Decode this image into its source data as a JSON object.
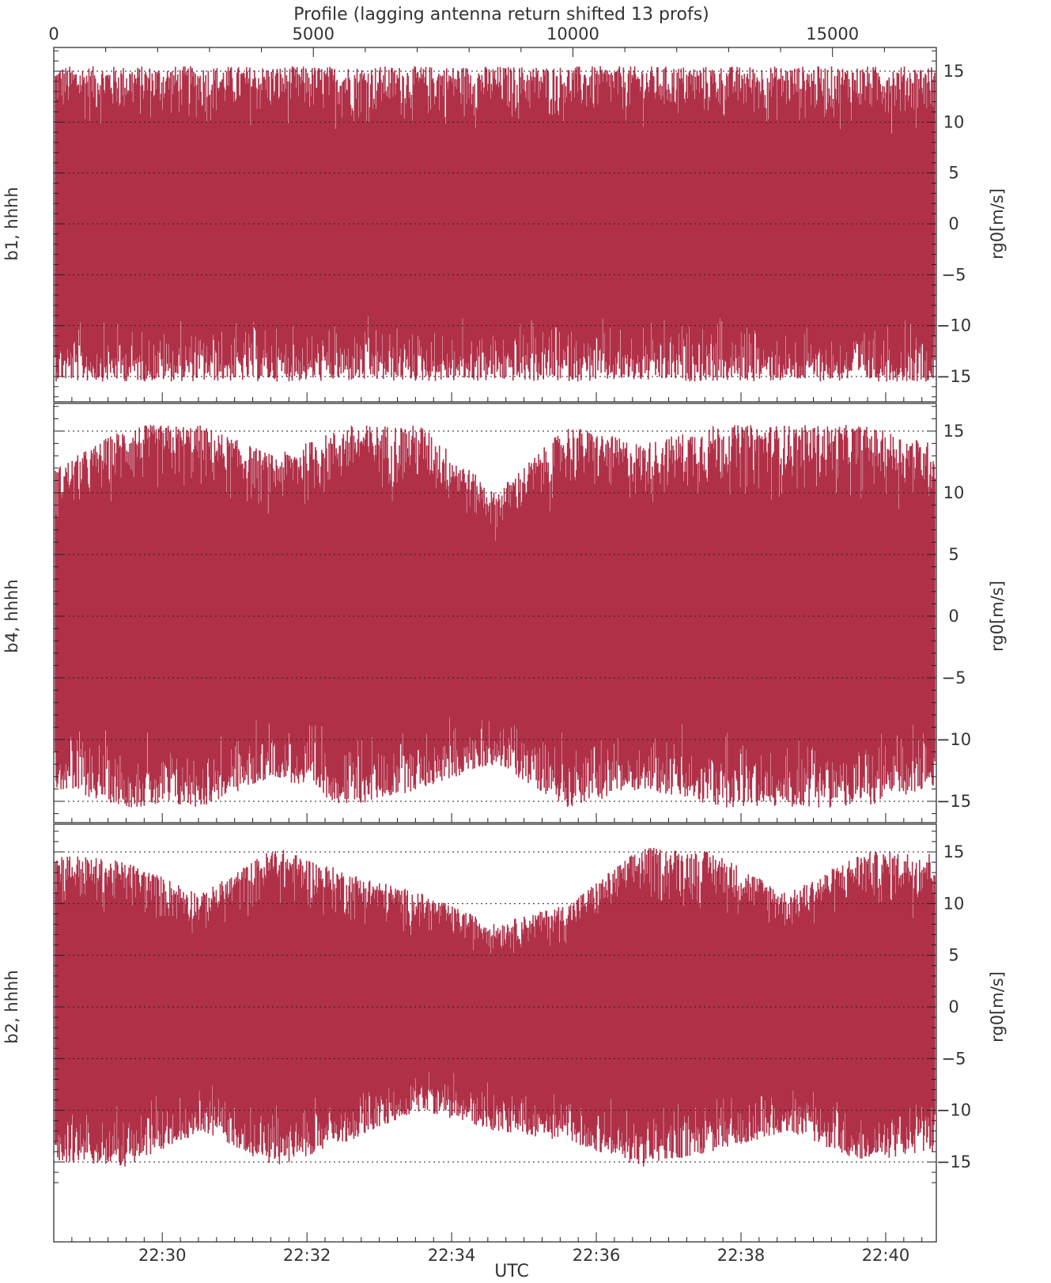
{
  "chart_data": {
    "type": "line",
    "top_axis": {
      "label": "Profile (lagging antenna return shifted 13 profs)",
      "range": [
        0,
        17000
      ],
      "tick_values": [
        0,
        5000,
        10000,
        15000
      ],
      "tick_labels": [
        "0",
        "5000",
        "10000",
        "15000"
      ]
    },
    "bottom_axis": {
      "label": "UTC",
      "range_minutes": [
        1348.5,
        1360.7
      ],
      "tick_minutes": [
        1350,
        1352,
        1354,
        1356,
        1358,
        1360
      ],
      "tick_labels": [
        "22:30",
        "22:32",
        "22:34",
        "22:36",
        "22:38",
        "22:40"
      ]
    },
    "y_axis": {
      "label": "rg0[m/s]",
      "range": [
        -17,
        17
      ],
      "tick_values": [
        15,
        10,
        5,
        0,
        -5,
        -10,
        -15
      ],
      "tick_labels": [
        "15",
        "10",
        "5",
        "0",
        "−5",
        "−10",
        "−15"
      ],
      "grid": "dotted"
    },
    "color": "#b03048",
    "panels": [
      {
        "name": "b1, hhhh",
        "description_values": {
          "min": -15.6,
          "max": 15.6,
          "envelope_top": [
            15.5,
            15.5,
            15.5,
            15.5,
            15.5,
            15.5,
            15.5,
            15.5,
            15.5,
            15.5,
            15.5,
            15.5,
            15.5
          ],
          "envelope_bottom": [
            -15.5,
            -15.5,
            -15.5,
            -15.5,
            -15.5,
            -15.5,
            -15.5,
            -15.5,
            -15.5,
            -15.5,
            -15.5,
            -15.5,
            -15.5
          ]
        }
      },
      {
        "name": "b4, hhhh",
        "description_values": {
          "min": -15.6,
          "max": 15.6,
          "envelope_top": [
            12,
            15.5,
            15.5,
            13,
            15.5,
            15.5,
            10,
            15.5,
            14,
            15.5,
            15.5,
            15.5,
            14
          ],
          "envelope_bottom": [
            -14,
            -15.5,
            -15.5,
            -13,
            -15.5,
            -14,
            -12,
            -15.5,
            -14,
            -15.5,
            -15.5,
            -15.5,
            -14
          ]
        }
      },
      {
        "name": "b2, hhhh",
        "description_values": {
          "min": -15.8,
          "max": 15.8,
          "envelope_top": [
            15,
            14,
            11,
            15.5,
            13,
            11,
            8,
            10,
            15.5,
            15,
            11,
            15,
            15
          ],
          "envelope_bottom": [
            -15,
            -15.5,
            -12,
            -15.5,
            -13,
            -10,
            -12,
            -13,
            -15.5,
            -14,
            -12,
            -15,
            -14
          ]
        }
      }
    ]
  }
}
